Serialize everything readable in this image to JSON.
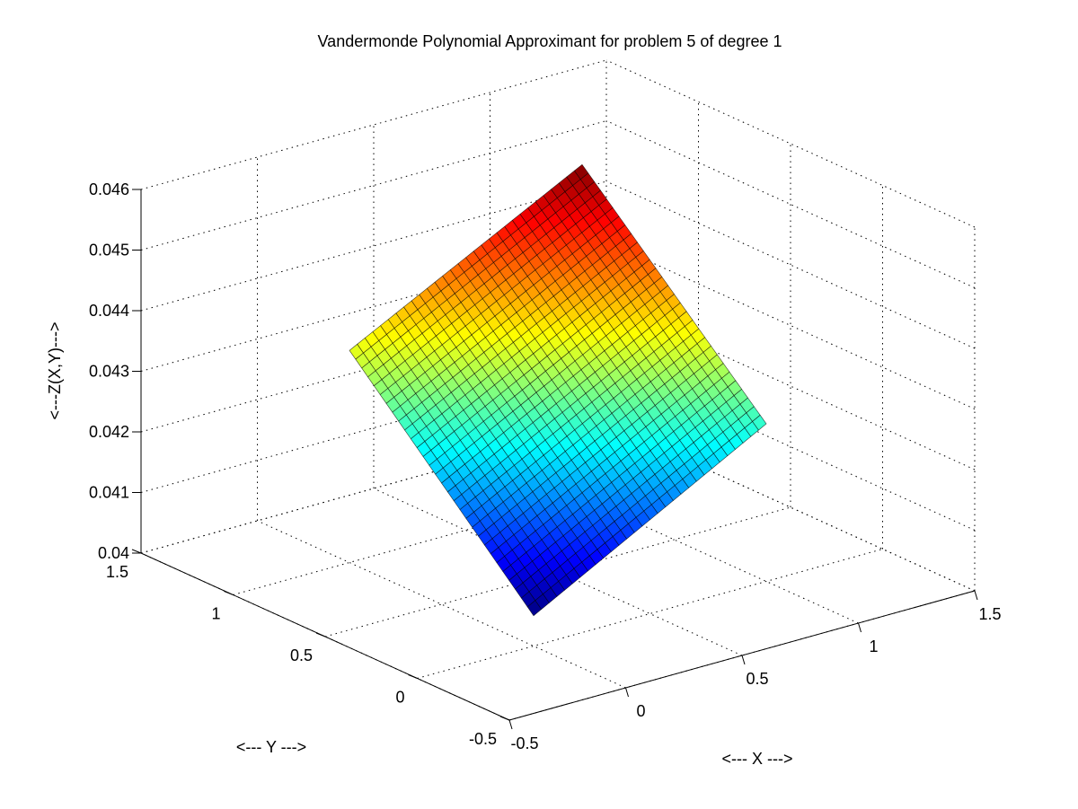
{
  "chart_data": {
    "type": "surface",
    "title": "Vandermonde Polynomial Approximant for problem 5 of degree 1",
    "xlabel": "<--- X --->",
    "ylabel": "<--- Y --->",
    "zlabel": "<---Z(X,Y)--->",
    "xlim": [
      -0.5,
      1.5
    ],
    "ylim": [
      -0.5,
      1.5
    ],
    "zlim": [
      0.04,
      0.046
    ],
    "xticks": [
      -0.5,
      0,
      0.5,
      1,
      1.5
    ],
    "yticks": [
      -0.5,
      0,
      0.5,
      1,
      1.5
    ],
    "zticks": [
      0.04,
      0.041,
      0.042,
      0.043,
      0.044,
      0.045,
      0.046
    ],
    "xtick_labels": [
      "-0.5",
      "0",
      "0.5",
      "1",
      "1.5"
    ],
    "ytick_labels": [
      "-0.5",
      "0",
      "0.5",
      "1",
      "1.5"
    ],
    "ztick_labels": [
      "0.04",
      "0.041",
      "0.042",
      "0.043",
      "0.044",
      "0.045",
      "0.046"
    ],
    "grid": true,
    "colormap": "jet",
    "surface": {
      "x_range": [
        0,
        1
      ],
      "y_range": [
        0,
        1
      ],
      "corner_values": {
        "x0_y0": 0.0405,
        "x1_y0": 0.0426,
        "x0_y1": 0.0435,
        "x1_y1": 0.0455
      }
    }
  }
}
